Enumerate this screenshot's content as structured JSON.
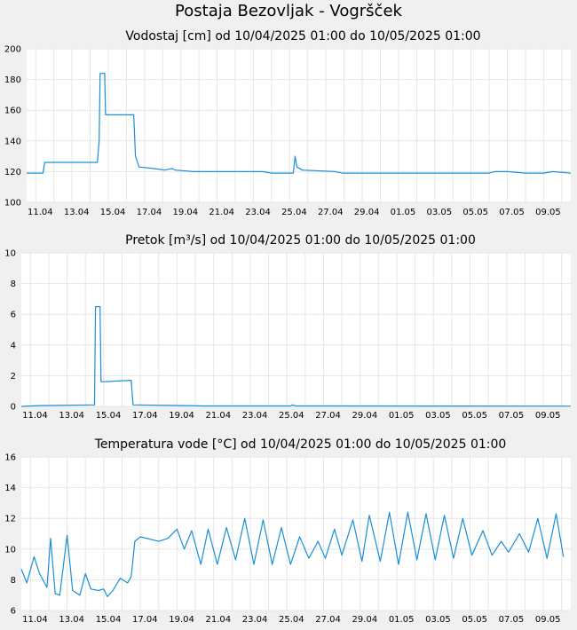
{
  "page": {
    "title": "Postaja Bezovljak - Vogršček"
  },
  "chart_data": [
    {
      "type": "line",
      "title": "Vodostaj [cm] od 10/04/2025 01:00 do 10/05/2025 01:00",
      "xlabel": "",
      "ylabel": "",
      "x_range_days": [
        0,
        30
      ],
      "ylim": [
        100,
        200
      ],
      "yticks": [
        "100",
        "120",
        "140",
        "160",
        "180",
        "200"
      ],
      "xticks": [
        "11.04",
        "13.04",
        "15.04",
        "17.04",
        "19.04",
        "21.04",
        "23.04",
        "25.04",
        "27.04",
        "29.04",
        "01.05",
        "03.05",
        "05.05",
        "07.05",
        "09.05"
      ],
      "grid": true,
      "series": [
        {
          "color": "#1a8fd6",
          "points": [
            [
              0,
              119
            ],
            [
              0.9,
              119
            ],
            [
              1.0,
              126
            ],
            [
              3.9,
              126
            ],
            [
              4.0,
              140
            ],
            [
              4.05,
              184
            ],
            [
              4.3,
              184
            ],
            [
              4.35,
              157
            ],
            [
              5.6,
              157
            ],
            [
              5.9,
              157
            ],
            [
              6.0,
              130
            ],
            [
              6.2,
              123
            ],
            [
              7.0,
              122
            ],
            [
              7.6,
              121
            ],
            [
              8.0,
              122
            ],
            [
              8.2,
              121
            ],
            [
              9.2,
              120
            ],
            [
              13.0,
              120
            ],
            [
              13.5,
              119
            ],
            [
              14.7,
              119
            ],
            [
              14.8,
              130
            ],
            [
              14.9,
              123
            ],
            [
              15.2,
              121
            ],
            [
              17.0,
              120
            ],
            [
              17.4,
              119
            ],
            [
              25.5,
              119
            ],
            [
              25.8,
              120
            ],
            [
              26.5,
              120
            ],
            [
              27.5,
              119
            ],
            [
              28.5,
              119
            ],
            [
              29.0,
              120
            ],
            [
              30.0,
              119
            ]
          ]
        }
      ]
    },
    {
      "type": "line",
      "title": "Pretok [m³/s] od 10/04/2025 01:00 do 10/05/2025 01:00",
      "xlabel": "",
      "ylabel": "",
      "x_range_days": [
        0,
        30
      ],
      "ylim": [
        0,
        10
      ],
      "yticks": [
        "0",
        "2",
        "4",
        "6",
        "8",
        "10"
      ],
      "xticks": [
        "11.04",
        "13.04",
        "15.04",
        "17.04",
        "19.04",
        "21.04",
        "23.04",
        "25.04",
        "27.04",
        "29.04",
        "01.05",
        "03.05",
        "05.05",
        "07.05",
        "09.05"
      ],
      "grid": true,
      "series": [
        {
          "color": "#1a8fd6",
          "points": [
            [
              0,
              0.0
            ],
            [
              1.0,
              0.05
            ],
            [
              4.0,
              0.1
            ],
            [
              4.05,
              6.5
            ],
            [
              4.3,
              6.5
            ],
            [
              4.35,
              1.6
            ],
            [
              6.0,
              1.7
            ],
            [
              6.1,
              0.1
            ],
            [
              9.0,
              0.05
            ],
            [
              10.0,
              0.03
            ],
            [
              14.7,
              0.03
            ],
            [
              14.8,
              0.1
            ],
            [
              15.0,
              0.03
            ],
            [
              30.0,
              0.02
            ]
          ]
        }
      ]
    },
    {
      "type": "line",
      "title": "Temperatura vode [°C] od 10/04/2025 01:00 do 10/05/2025 01:00",
      "xlabel": "",
      "ylabel": "",
      "x_range_days": [
        0,
        30
      ],
      "ylim": [
        6,
        16
      ],
      "yticks": [
        "6",
        "8",
        "10",
        "12",
        "14",
        "16"
      ],
      "xticks": [
        "11.04",
        "13.04",
        "15.04",
        "17.04",
        "19.04",
        "21.04",
        "23.04",
        "25.04",
        "27.04",
        "29.04",
        "01.05",
        "03.05",
        "05.05",
        "07.05",
        "09.05"
      ],
      "grid": true,
      "series": [
        {
          "color": "#1a8fd6",
          "points": [
            [
              0,
              8.7
            ],
            [
              0.3,
              7.8
            ],
            [
              0.7,
              9.5
            ],
            [
              1.0,
              8.4
            ],
            [
              1.4,
              7.5
            ],
            [
              1.6,
              10.7
            ],
            [
              1.85,
              7.1
            ],
            [
              2.1,
              7.0
            ],
            [
              2.5,
              10.9
            ],
            [
              2.8,
              7.3
            ],
            [
              3.2,
              7.0
            ],
            [
              3.5,
              8.4
            ],
            [
              3.8,
              7.4
            ],
            [
              4.2,
              7.3
            ],
            [
              4.5,
              7.4
            ],
            [
              4.7,
              6.9
            ],
            [
              5.0,
              7.3
            ],
            [
              5.4,
              8.1
            ],
            [
              5.8,
              7.8
            ],
            [
              6.0,
              8.2
            ],
            [
              6.2,
              10.5
            ],
            [
              6.5,
              10.8
            ],
            [
              7.5,
              10.5
            ],
            [
              8.0,
              10.7
            ],
            [
              8.5,
              11.3
            ],
            [
              8.9,
              10.0
            ],
            [
              9.3,
              11.2
            ],
            [
              9.8,
              9.0
            ],
            [
              10.2,
              11.3
            ],
            [
              10.7,
              9.0
            ],
            [
              11.2,
              11.4
            ],
            [
              11.7,
              9.3
            ],
            [
              12.2,
              12.0
            ],
            [
              12.7,
              9.0
            ],
            [
              13.2,
              11.9
            ],
            [
              13.7,
              9.0
            ],
            [
              14.2,
              11.4
            ],
            [
              14.7,
              9.0
            ],
            [
              15.2,
              10.8
            ],
            [
              15.7,
              9.4
            ],
            [
              16.2,
              10.5
            ],
            [
              16.6,
              9.4
            ],
            [
              17.1,
              11.3
            ],
            [
              17.5,
              9.6
            ],
            [
              18.1,
              11.9
            ],
            [
              18.6,
              9.2
            ],
            [
              19.0,
              12.2
            ],
            [
              19.6,
              9.2
            ],
            [
              20.1,
              12.4
            ],
            [
              20.6,
              9.0
            ],
            [
              21.1,
              12.4
            ],
            [
              21.6,
              9.3
            ],
            [
              22.1,
              12.3
            ],
            [
              22.6,
              9.3
            ],
            [
              23.1,
              12.2
            ],
            [
              23.6,
              9.4
            ],
            [
              24.1,
              12.0
            ],
            [
              24.6,
              9.6
            ],
            [
              25.2,
              11.2
            ],
            [
              25.7,
              9.6
            ],
            [
              26.2,
              10.5
            ],
            [
              26.6,
              9.8
            ],
            [
              27.2,
              11.0
            ],
            [
              27.7,
              9.8
            ],
            [
              28.2,
              12.0
            ],
            [
              28.7,
              9.4
            ],
            [
              29.2,
              12.3
            ],
            [
              29.6,
              9.5
            ]
          ]
        }
      ]
    }
  ]
}
